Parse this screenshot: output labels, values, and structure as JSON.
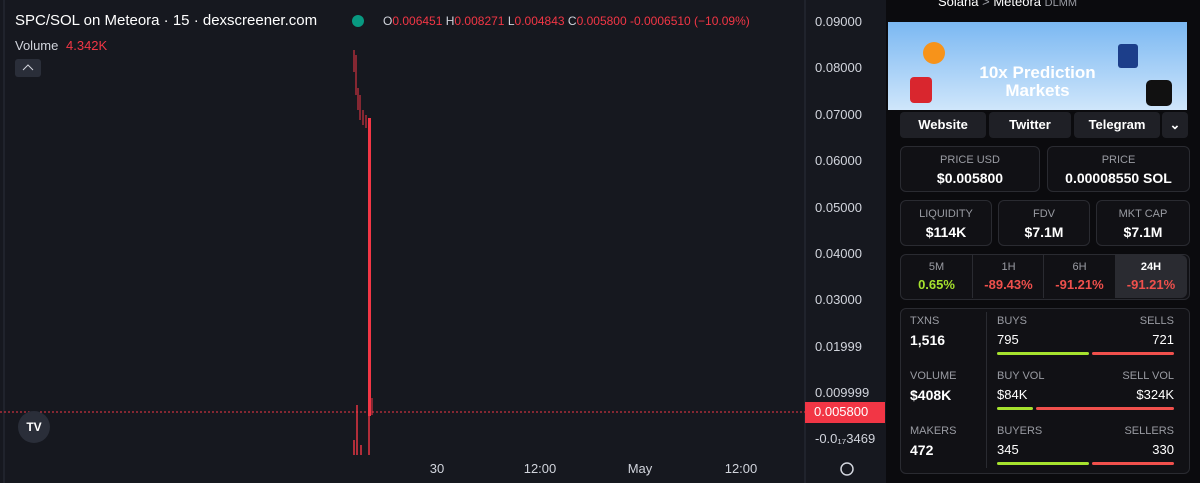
{
  "chart": {
    "title": "SPC/SOL on Meteora · 15 · dexscreener.com",
    "ohlc": {
      "o_label": "O",
      "o": "0.006451",
      "h_label": "H",
      "h": "0.008271",
      "l_label": "L",
      "l": "0.004843",
      "c_label": "C",
      "c": "0.005800",
      "change": "-0.0006510 (−10.09%)"
    },
    "volume_label": "Volume",
    "volume": "4.342K",
    "price_axis": [
      "0.09000",
      "0.08000",
      "0.07000",
      "0.06000",
      "0.05000",
      "0.04000",
      "0.03000",
      "0.01999",
      "0.009999"
    ],
    "current_price": "0.005800",
    "bottom_price": "-0.0₁₇3469",
    "time_axis": [
      "30",
      "12:00",
      "May",
      "12:00"
    ]
  },
  "panel": {
    "breadcrumb": [
      "Solana",
      ">",
      "Meteora",
      "DLMM"
    ],
    "banner": "10x Prediction Markets",
    "links": [
      "Website",
      "Twitter",
      "Telegram"
    ],
    "price_cards": [
      {
        "label": "PRICE USD",
        "value": "$0.005800"
      },
      {
        "label": "PRICE",
        "value": "0.00008550 SOL"
      }
    ],
    "stat_cards": [
      {
        "label": "LIQUIDITY",
        "value": "$114K"
      },
      {
        "label": "FDV",
        "value": "$7.1M"
      },
      {
        "label": "MKT CAP",
        "value": "$7.1M"
      }
    ],
    "timeframes": [
      {
        "label": "5M",
        "value": "0.65%"
      },
      {
        "label": "1H",
        "value": "-89.43%"
      },
      {
        "label": "6H",
        "value": "-91.21%"
      },
      {
        "label": "24H",
        "value": "-91.21%"
      }
    ],
    "rows": [
      {
        "label": "TXNS",
        "value": "1,516",
        "left_label": "BUYS",
        "left": "795",
        "right_label": "SELLS",
        "right": "721"
      },
      {
        "label": "VOLUME",
        "value": "$408K",
        "left_label": "BUY VOL",
        "left": "$84K",
        "right_label": "SELL VOL",
        "right": "$324K"
      },
      {
        "label": "MAKERS",
        "value": "472",
        "left_label": "BUYERS",
        "left": "345",
        "right_label": "SELLERS",
        "right": "330"
      }
    ]
  }
}
